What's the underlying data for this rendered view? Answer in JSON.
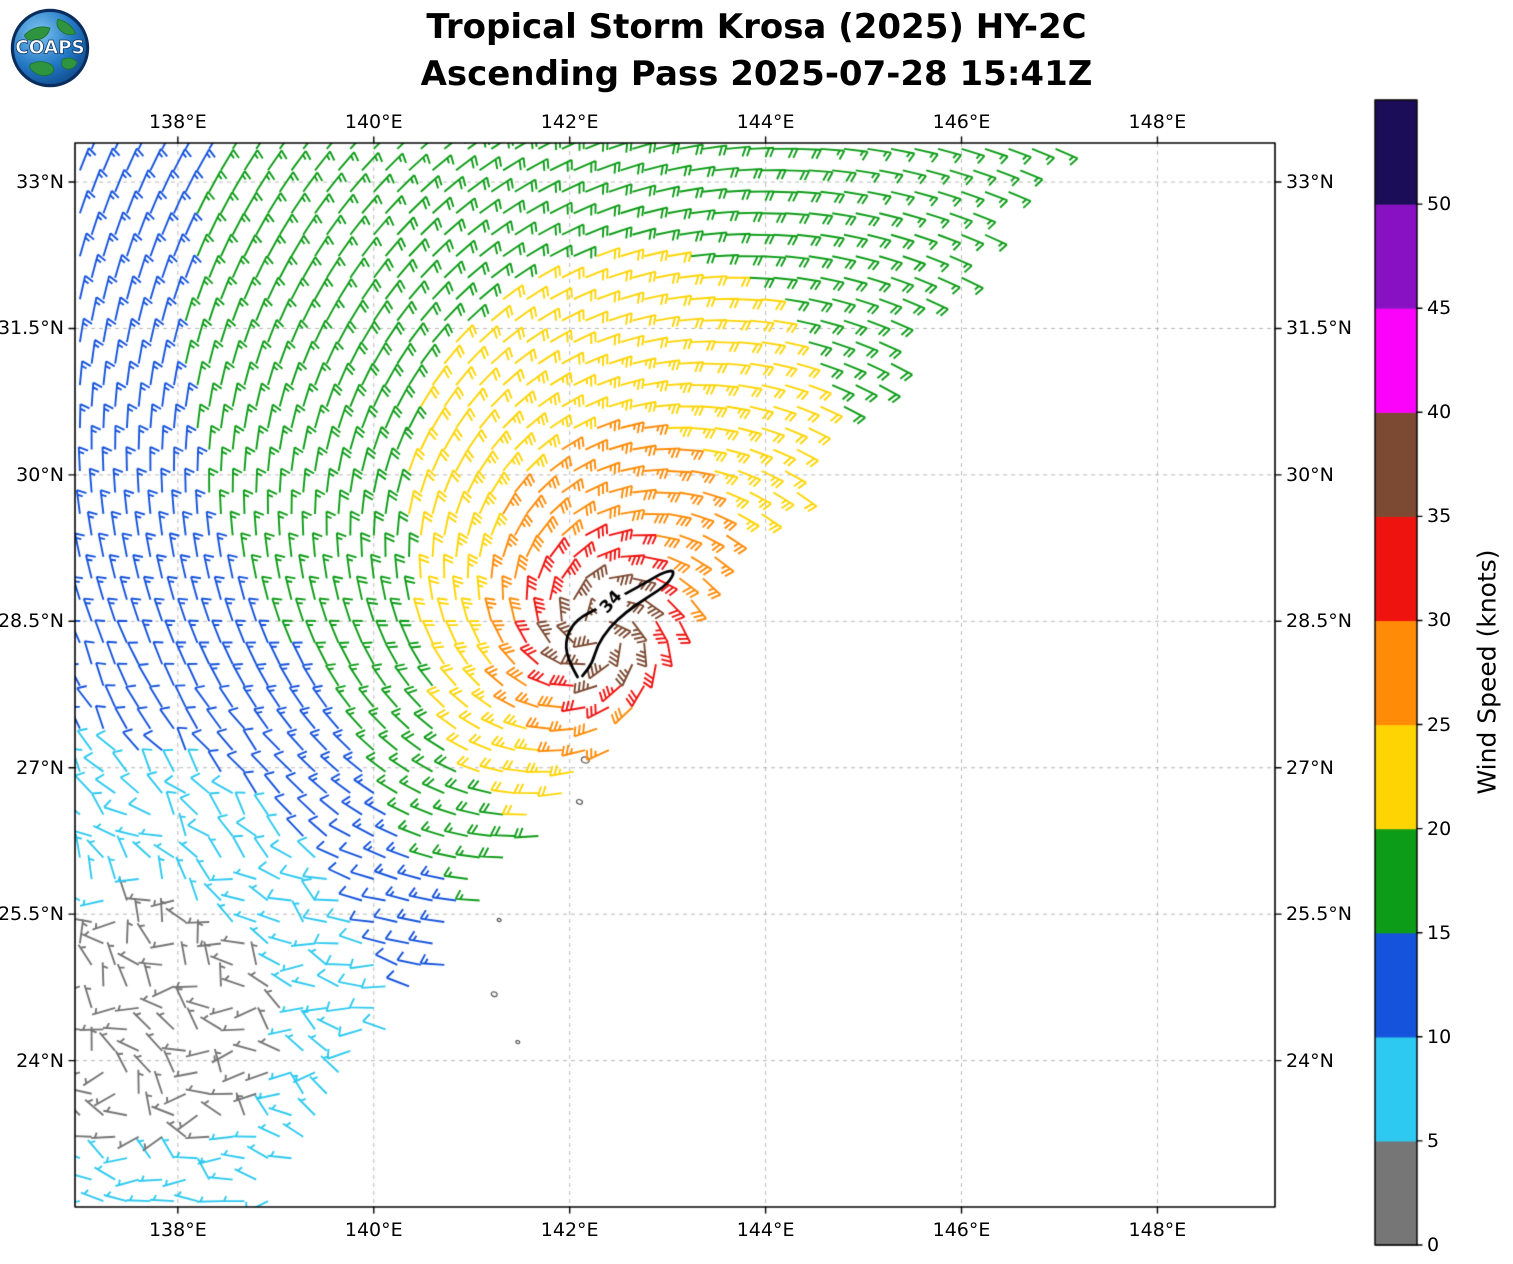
{
  "header": {
    "logo_text": "COAPS",
    "title_line1": "Tropical Storm Krosa (2025) HY-2C",
    "title_line2": "Ascending Pass 2025-07-28 15:41Z"
  },
  "chart_data": {
    "type": "wind_barb_map",
    "title": "Tropical Storm Krosa (2025) HY-2C",
    "subtitle": "Ascending Pass 2025-07-28 15:41Z",
    "grid": true,
    "x_axis": {
      "range": [
        136.95,
        149.2
      ],
      "ticks": [
        {
          "value": 138,
          "label": "138°E"
        },
        {
          "value": 140,
          "label": "140°E"
        },
        {
          "value": 142,
          "label": "142°E"
        },
        {
          "value": 144,
          "label": "144°E"
        },
        {
          "value": 146,
          "label": "146°E"
        },
        {
          "value": 148,
          "label": "148°E"
        }
      ]
    },
    "y_axis": {
      "range": [
        22.5,
        33.4
      ],
      "ticks": [
        {
          "value": 24,
          "label": "24°N"
        },
        {
          "value": 25.5,
          "label": "25.5°N"
        },
        {
          "value": 27,
          "label": "27°N"
        },
        {
          "value": 28.5,
          "label": "28.5°N"
        },
        {
          "value": 30,
          "label": "30°N"
        },
        {
          "value": 31.5,
          "label": "31.5°N"
        },
        {
          "value": 33,
          "label": "33°N"
        }
      ]
    },
    "colorbar": {
      "label": "Wind Speed (knots)",
      "bin_size_kt": 5,
      "colors": [
        "#767676",
        "#2ec9f0",
        "#1553dc",
        "#0d9c17",
        "#ffd403",
        "#ff8b07",
        "#ef1310",
        "#7c4a32",
        "#fb02fb",
        "#8812c3",
        "#1c0d58"
      ],
      "ticks": [
        {
          "value": 0,
          "label": "0"
        },
        {
          "value": 5,
          "label": "5"
        },
        {
          "value": 10,
          "label": "10"
        },
        {
          "value": 15,
          "label": "15"
        },
        {
          "value": 20,
          "label": "20"
        },
        {
          "value": 25,
          "label": "25"
        },
        {
          "value": 30,
          "label": "30"
        },
        {
          "value": 35,
          "label": "35"
        },
        {
          "value": 40,
          "label": "40"
        },
        {
          "value": 45,
          "label": "45"
        },
        {
          "value": 50,
          "label": "50"
        }
      ]
    },
    "storm": {
      "name": "Krosa",
      "center_lon": 142.3,
      "center_lat": 28.4,
      "max_wind_kt": 37,
      "gale_contour_kt": 34,
      "contour_label": "34",
      "contour_label_pos": [
        142.42,
        28.7
      ],
      "contour_label_rotation_deg": -48,
      "contour_points": [
        [
          142.08,
          27.93
        ],
        [
          141.97,
          28.12
        ],
        [
          141.96,
          28.34
        ],
        [
          142.07,
          28.52
        ],
        [
          142.3,
          28.64
        ],
        [
          142.55,
          28.77
        ],
        [
          142.8,
          28.91
        ],
        [
          142.97,
          29.01
        ],
        [
          143.08,
          29.02
        ],
        [
          143.0,
          28.88
        ],
        [
          142.8,
          28.75
        ],
        [
          142.58,
          28.6
        ],
        [
          142.4,
          28.43
        ],
        [
          142.28,
          28.25
        ],
        [
          142.23,
          28.07
        ],
        [
          142.13,
          27.94
        ]
      ]
    },
    "swath": {
      "left_lon": 137.0,
      "right_edge": {
        "lat_ref": 24,
        "lon_at_ref": 139.9,
        "slope": 0.75
      },
      "barb_spacing_deg": {
        "dlon": 0.24,
        "dlat": 0.22
      }
    },
    "wind_model": {
      "vmax_kt": 37,
      "rmax_deg": 0.5,
      "decay_exp": 0.38,
      "inflow_deg": 20,
      "asym": {
        "a1": 0.3,
        "a2": 0.25,
        "axis_deg": 80,
        "ramp_deg": 2.2
      },
      "calm_zone": {
        "lon": 138.1,
        "lat": 24.5,
        "width_deg": 2.6,
        "deficit_kt": 11
      }
    },
    "islands": [
      [
        140.34,
        30.47,
        1.5
      ],
      [
        142.16,
        27.08,
        4
      ],
      [
        142.1,
        26.65,
        3
      ],
      [
        141.28,
        25.44,
        2
      ],
      [
        141.23,
        24.68,
        3
      ],
      [
        141.47,
        24.19,
        2
      ]
    ]
  }
}
